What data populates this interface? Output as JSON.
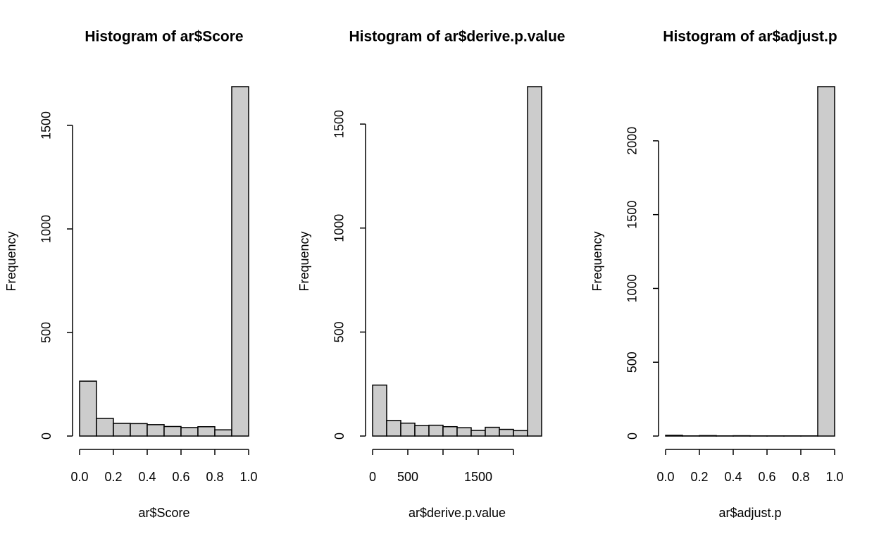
{
  "chart_data": [
    {
      "type": "histogram",
      "title": "Histogram of ar$Score",
      "xlabel": "ar$Score",
      "ylabel": "Frequency",
      "bins": [
        0,
        0.1,
        0.2,
        0.3,
        0.4,
        0.5,
        0.6,
        0.7,
        0.8,
        0.9,
        1.0
      ],
      "values": [
        265,
        85,
        61,
        60,
        55,
        46,
        41,
        45,
        30,
        1687
      ],
      "color": "#cccccc",
      "xlim": [
        0,
        1
      ],
      "ylim": [
        0,
        1687
      ],
      "xticks": [
        {
          "value": 0,
          "label": "0.0"
        },
        0.2,
        0.4,
        0.6,
        0.8,
        {
          "value": 1,
          "label": "1.0"
        }
      ],
      "yticks": [
        0,
        500,
        1000,
        1500
      ]
    },
    {
      "type": "histogram",
      "title": "Histogram of ar$derive.p.value",
      "xlabel": "ar$derive.p.value",
      "ylabel": "Frequency",
      "bins": [
        0,
        200,
        400,
        600,
        800,
        1000,
        1200,
        1400,
        1600,
        1800,
        2000,
        2200,
        2400
      ],
      "values": [
        245,
        75,
        62,
        50,
        52,
        45,
        40,
        27,
        42,
        32,
        26,
        1680
      ],
      "color": "#cccccc",
      "xlim": [
        0,
        2400
      ],
      "ylim": [
        0,
        1680
      ],
      "xticks": [
        0,
        500,
        {
          "value": 1000,
          "label": null
        },
        1500,
        {
          "value": 2000,
          "label": null
        }
      ],
      "yticks": [
        0,
        500,
        1000,
        1500
      ]
    },
    {
      "type": "histogram",
      "title": "Histogram of ar$adjust.p",
      "xlabel": "ar$adjust.p",
      "ylabel": "Frequency",
      "bins": [
        0,
        0.1,
        0.2,
        0.3,
        0.4,
        0.5,
        0.6,
        0.7,
        0.8,
        0.9,
        1.0
      ],
      "values": [
        5,
        1,
        3,
        1,
        2,
        1,
        1,
        1,
        1,
        2367
      ],
      "color": "#cccccc",
      "xlim": [
        0,
        1
      ],
      "ylim": [
        0,
        2367
      ],
      "xticks": [
        {
          "value": 0,
          "label": "0.0"
        },
        0.2,
        0.4,
        0.6,
        0.8,
        {
          "value": 1,
          "label": "1.0"
        }
      ],
      "yticks": [
        0,
        500,
        1000,
        1500,
        2000
      ]
    }
  ]
}
